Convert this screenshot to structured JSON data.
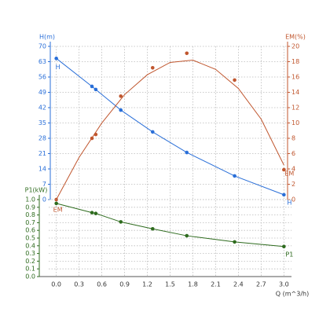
{
  "chart_data": [
    {
      "type": "line",
      "ylabel": "H(m)",
      "y2label": "EM(%)",
      "xlim": [
        -0.1,
        3.1
      ],
      "ylim": [
        0,
        70
      ],
      "yticks": [
        0,
        7,
        14,
        21,
        28,
        35,
        42,
        49,
        56,
        63,
        70
      ],
      "y2lim": [
        0,
        20
      ],
      "y2ticks": [
        0,
        2,
        4,
        6,
        8,
        10,
        12,
        14,
        16,
        18,
        20
      ],
      "grid": true,
      "x": [
        0,
        0.47,
        0.52,
        0.85,
        1.27,
        1.72,
        2.35,
        3.0
      ],
      "series": [
        {
          "name": "H",
          "color": "#2a6fd8",
          "values": [
            64.5,
            51.7,
            50.3,
            40.9,
            30.9,
            21.5,
            10.8,
            2.2
          ]
        },
        {
          "name": "EM",
          "color": "#c0562e",
          "axis": "y2",
          "values": [
            0,
            8.0,
            8.5,
            13.5,
            17.2,
            19.1,
            15.6,
            3.9
          ],
          "curve_x": [
            0,
            0.3,
            0.6,
            0.9,
            1.2,
            1.5,
            1.8,
            2.1,
            2.4,
            2.7,
            3.0
          ],
          "curve_values": [
            0,
            5.5,
            10,
            13.7,
            16.3,
            17.9,
            18.2,
            17,
            14.5,
            10.5,
            4.5
          ]
        }
      ]
    },
    {
      "type": "line",
      "ylabel": "P1(kW)",
      "xlabel": "Q (m^3/h)",
      "xlim": [
        -0.1,
        3.1
      ],
      "xticks": [
        {
          "value": 0,
          "label": "0.0"
        },
        0.3,
        0.6,
        0.9,
        1.2,
        1.5,
        1.8,
        2.1,
        2.4,
        2.7,
        {
          "value": 3,
          "label": "3.0"
        }
      ],
      "ylim": [
        0,
        1
      ],
      "yticks": [
        {
          "value": 0,
          "label": "0.0"
        },
        0.1,
        0.2,
        0.3,
        0.4,
        0.5,
        0.6,
        0.7,
        0.8,
        0.9,
        {
          "value": 1,
          "label": "1.0"
        }
      ],
      "grid": true,
      "x": [
        0,
        0.47,
        0.52,
        0.85,
        1.27,
        1.72,
        2.35,
        3.0
      ],
      "series": [
        {
          "name": "P1",
          "color": "#2e6b1e",
          "values": [
            0.95,
            0.83,
            0.82,
            0.71,
            0.62,
            0.53,
            0.45,
            0.39
          ]
        }
      ]
    }
  ]
}
